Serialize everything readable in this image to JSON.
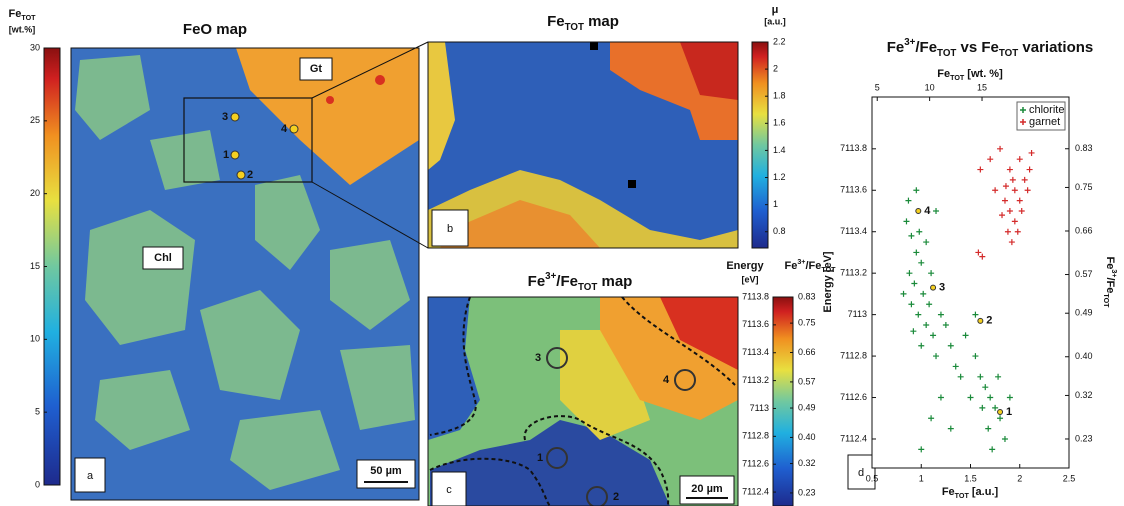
{
  "chart_data": [
    {
      "type": "map",
      "title": [
        {
          "text": "FeO map"
        }
      ],
      "colorbar_label": [
        {
          "text": "Fe"
        },
        {
          "text": "TOT",
          "sub": true
        }
      ],
      "colorbar_unit": "[wt.%]",
      "ylim": [
        0,
        30
      ],
      "yticks": [
        0,
        5,
        10,
        15,
        20,
        25,
        30
      ],
      "panel": "a",
      "scale_bar": "50 µm",
      "annotations": [
        "Gt",
        "Chl"
      ],
      "point_labels": [
        "1",
        "2",
        "3",
        "4"
      ]
    },
    {
      "type": "map",
      "title": [
        {
          "text": "Fe"
        },
        {
          "text": "TOT",
          "sub": true
        },
        {
          "text": " map"
        }
      ],
      "colorbar_label": [
        {
          "text": "μ"
        }
      ],
      "colorbar_unit": "[a.u.]",
      "ylim": [
        0.68,
        2.2
      ],
      "yticks": [
        0.8,
        1,
        1.2,
        1.4,
        1.6,
        1.8,
        2,
        2.2
      ],
      "panel": "b"
    },
    {
      "type": "map",
      "title": [
        {
          "text": "Fe"
        },
        {
          "text": "3+",
          "sup": true
        },
        {
          "text": "/Fe"
        },
        {
          "text": "TOT",
          "sub": true
        },
        {
          "text": " map"
        }
      ],
      "colorbar_label": [
        {
          "text": "Energy"
        }
      ],
      "colorbar_unit": "[eV]",
      "y2_label": [
        {
          "text": "Fe"
        },
        {
          "text": "3+",
          "sup": true
        },
        {
          "text": "/Fe"
        },
        {
          "text": "TOT",
          "sub": true
        }
      ],
      "ylim": [
        7112.3,
        7113.8
      ],
      "yticks": [
        7112.4,
        7112.6,
        7112.8,
        7113,
        7113.2,
        7113.4,
        7113.6,
        7113.8
      ],
      "y2lim": [
        0.19,
        0.83
      ],
      "y2ticks": [
        0.23,
        0.32,
        {
          "value": 0.4,
          "label": "0.40"
        },
        0.49,
        0.57,
        0.66,
        0.75,
        0.83
      ],
      "panel": "c",
      "scale_bar": "20 µm",
      "point_labels": [
        "1",
        "2",
        "3",
        "4"
      ]
    },
    {
      "type": "scatter",
      "title": [
        {
          "text": "Fe"
        },
        {
          "text": "3+",
          "sup": true
        },
        {
          "text": "/Fe"
        },
        {
          "text": "TOT",
          "sub": true
        },
        {
          "text": " vs Fe"
        },
        {
          "text": "TOT",
          "sub": true
        },
        {
          "text": " variations"
        }
      ],
      "xlabel": [
        {
          "text": "Fe"
        },
        {
          "text": "TOT",
          "sub": true
        },
        {
          "text": " [a.u.]"
        }
      ],
      "x2label": [
        {
          "text": "Fe"
        },
        {
          "text": "TOT",
          "sub": true
        },
        {
          "text": " [wt. %]"
        }
      ],
      "ylabel": [
        {
          "text": "Energy [eV]"
        }
      ],
      "y2label": [
        {
          "text": "Fe"
        },
        {
          "text": "3+",
          "sup": true
        },
        {
          "text": "/Fe"
        },
        {
          "text": "TOT",
          "sub": true
        }
      ],
      "xlim": [
        0.5,
        2.5
      ],
      "xticks": [
        0.5,
        1,
        1.5,
        2,
        2.5
      ],
      "x2lim": [
        4.5,
        23.3
      ],
      "x2ticks": [
        5,
        10,
        15
      ],
      "ylim": [
        7112.26,
        7114.05
      ],
      "yticks": [
        7112.4,
        7112.6,
        7112.8,
        7113,
        7113.2,
        7113.4,
        7113.6,
        7113.8
      ],
      "y2lim": [
        0.17,
        0.937
      ],
      "y2ticks": [
        0.23,
        0.32,
        {
          "value": 0.4,
          "label": "0.40"
        },
        0.49,
        0.57,
        0.66,
        0.75,
        0.83
      ],
      "legend": "upper right",
      "panel": "d",
      "series": [
        {
          "name": "chlorite",
          "color": "#1a8a3a",
          "x": [
            0.85,
            0.9,
            0.95,
            1.0,
            0.88,
            0.93,
            1.02,
            1.08,
            0.97,
            1.05,
            1.12,
            0.92,
            1.0,
            1.15,
            1.2,
            1.25,
            0.82,
            0.87,
            1.1,
            0.98,
            1.05,
            0.9,
            1.3,
            1.35,
            1.4,
            1.45,
            1.55,
            1.6,
            1.65,
            1.7,
            1.75,
            1.8,
            1.68,
            1.85,
            1.72,
            1.78,
            1.62,
            1.9,
            1.55,
            1.5,
            1.2,
            1.1,
            1.0,
            1.3,
            0.95,
            1.15
          ],
          "y": [
            7113.45,
            7113.38,
            7113.3,
            7113.25,
            7113.2,
            7113.15,
            7113.1,
            7113.05,
            7113.0,
            7112.95,
            7112.9,
            7112.92,
            7112.85,
            7112.8,
            7113.0,
            7112.95,
            7113.1,
            7113.55,
            7113.2,
            7113.4,
            7113.35,
            7113.05,
            7112.85,
            7112.75,
            7112.7,
            7112.9,
            7112.8,
            7112.7,
            7112.65,
            7112.6,
            7112.55,
            7112.5,
            7112.45,
            7112.4,
            7112.35,
            7112.7,
            7112.55,
            7112.6,
            7113.0,
            7112.6,
            7112.6,
            7112.5,
            7112.35,
            7112.45,
            7113.6,
            7113.5
          ]
        },
        {
          "name": "garnet",
          "color": "#d42a2a",
          "x": [
            1.6,
            1.7,
            1.8,
            1.9,
            1.95,
            2.0,
            2.05,
            2.1,
            1.85,
            1.9,
            1.95,
            2.0,
            1.88,
            1.92,
            1.98,
            2.02,
            1.75,
            1.82,
            2.08,
            1.58,
            1.62,
            2.12,
            1.93,
            1.86
          ],
          "y": [
            7113.7,
            7113.75,
            7113.8,
            7113.7,
            7113.6,
            7113.75,
            7113.65,
            7113.7,
            7113.55,
            7113.5,
            7113.45,
            7113.55,
            7113.4,
            7113.35,
            7113.4,
            7113.5,
            7113.6,
            7113.48,
            7113.6,
            7113.3,
            7113.28,
            7113.78,
            7113.65,
            7113.62
          ]
        }
      ],
      "point_labels": [
        {
          "label": "1",
          "x": 1.8,
          "y": 7112.53
        },
        {
          "label": "2",
          "x": 1.6,
          "y": 7112.97
        },
        {
          "label": "3",
          "x": 1.12,
          "y": 7113.13
        },
        {
          "label": "4",
          "x": 0.97,
          "y": 7113.5
        }
      ]
    }
  ]
}
